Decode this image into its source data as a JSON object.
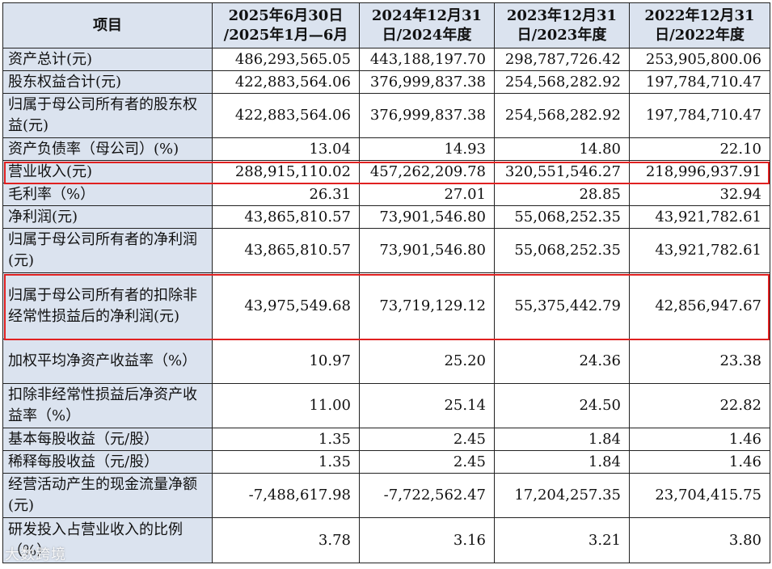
{
  "header": {
    "item": "项目",
    "cols": [
      "2025年6月30日\n/2025年1月—6月",
      "2024年12月31\n日/2024年度",
      "2023年12月31\n日/2023年度",
      "2022年12月31\n日/2022年度"
    ]
  },
  "rows": [
    {
      "label": "资产总计(元)",
      "values": [
        "486,293,565.05",
        "443,188,197.70",
        "298,787,726.42",
        "253,905,800.06"
      ]
    },
    {
      "label": "股东权益合计(元)",
      "values": [
        "422,883,564.06",
        "376,999,837.38",
        "254,568,282.92",
        "197,784,710.47"
      ]
    },
    {
      "label": "归属于母公司所有者的股东权益(元)",
      "values": [
        "422,883,564.06",
        "376,999,837.38",
        "254,568,282.92",
        "197,784,710.47"
      ]
    },
    {
      "label": "资产负债率（母公司）(%)",
      "values": [
        "13.04",
        "14.93",
        "14.80",
        "22.10"
      ]
    },
    {
      "label": "营业收入(元)",
      "values": [
        "288,915,110.02",
        "457,262,209.78",
        "320,551,546.27",
        "218,996,937.91"
      ],
      "highlight": true
    },
    {
      "label": "毛利率（%）",
      "values": [
        "26.31",
        "27.01",
        "28.85",
        "32.94"
      ]
    },
    {
      "label": "净利润(元)",
      "values": [
        "43,865,810.57",
        "73,901,546.80",
        "55,068,252.35",
        "43,921,782.61"
      ]
    },
    {
      "label": "归属于母公司所有者的净利润(元)",
      "values": [
        "43,865,810.57",
        "73,901,546.80",
        "55,068,252.35",
        "43,921,782.61"
      ]
    },
    {
      "label": "归属于母公司所有者的扣除非经常性损益后的净利润(元)",
      "values": [
        "43,975,549.68",
        "73,719,129.12",
        "55,375,442.79",
        "42,856,947.67"
      ],
      "highlight": true
    },
    {
      "label": "加权平均净资产收益率（%）",
      "values": [
        "10.97",
        "25.20",
        "24.36",
        "23.38"
      ]
    },
    {
      "label": "扣除非经常性损益后净资产收益率（%）",
      "values": [
        "11.00",
        "25.14",
        "24.50",
        "22.82"
      ]
    },
    {
      "label": "基本每股收益（元/股）",
      "values": [
        "1.35",
        "2.45",
        "1.84",
        "1.46"
      ]
    },
    {
      "label": "稀释每股收益（元/股）",
      "values": [
        "1.35",
        "2.45",
        "1.84",
        "1.46"
      ]
    },
    {
      "label": "经营活动产生的现金流量净额(元)",
      "values": [
        "-7,488,617.98",
        "-7,722,562.47",
        "17,204,257.35",
        "23,704,415.75"
      ]
    },
    {
      "label": "研发投入占营业收入的比例（%）",
      "values": [
        "3.78",
        "3.16",
        "3.21",
        "3.80"
      ]
    }
  ],
  "watermark": "大数跨境",
  "colors": {
    "header_bg": "#dbe3ef",
    "highlight_border": "#e02020"
  }
}
